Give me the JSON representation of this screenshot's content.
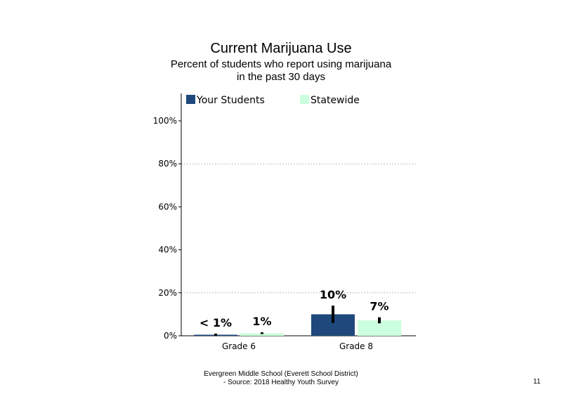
{
  "chart_data": {
    "type": "bar",
    "title": "Current Marijuana Use",
    "subtitle_lines": [
      "Percent of students who report using marijuana",
      "in the past 30 days"
    ],
    "categories": [
      "Grade 6",
      "Grade 8"
    ],
    "series": [
      {
        "name": "Your Students",
        "color": "#1f497d",
        "values": [
          0.5,
          10
        ],
        "labels": [
          "< 1%",
          "10%"
        ],
        "error": [
          [
            0,
            1
          ],
          [
            6,
            14
          ]
        ]
      },
      {
        "name": "Statewide",
        "color": "#ccffdd",
        "values": [
          1.2,
          7.2
        ],
        "labels": [
          "1%",
          "7%"
        ],
        "error": [
          [
            0.8,
            1.6
          ],
          [
            5.8,
            8.6
          ]
        ]
      }
    ],
    "ylim": [
      0,
      100
    ],
    "yticks": [
      0,
      20,
      40,
      60,
      80,
      100
    ],
    "ytick_labels": [
      "0%",
      "20%",
      "40%",
      "60%",
      "80%",
      "100%"
    ],
    "grid": "dotted horizontal at 20% and 80%",
    "legend": "top"
  },
  "footer": {
    "line1": "Evergreen Middle  School (Everett School District)",
    "line2": "- Source: 2018 Healthy  Youth Survey"
  },
  "page_number": "11"
}
